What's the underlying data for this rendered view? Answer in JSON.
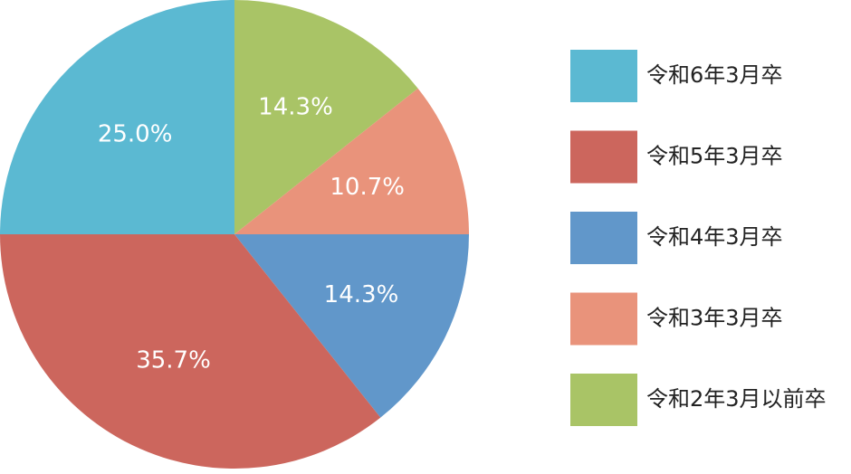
{
  "chart_data": {
    "type": "pie",
    "title": "",
    "start": "top",
    "direction": "clockwise",
    "slices": [
      {
        "label": "令和2年3月以前卒",
        "value": 14.3,
        "value_label": "14.3%",
        "color": "#a9c466"
      },
      {
        "label": "令和3年3月卒",
        "value": 10.7,
        "value_label": "10.7%",
        "color": "#e9937b"
      },
      {
        "label": "令和4年3月卒",
        "value": 14.3,
        "value_label": "14.3%",
        "color": "#6197ca"
      },
      {
        "label": "令和5年3月卒",
        "value": 35.7,
        "value_label": "35.7%",
        "color": "#cc665d"
      },
      {
        "label": "令和6年3月卒",
        "value": 25.0,
        "value_label": "25.0%",
        "color": "#5bb9d2"
      }
    ],
    "legend": {
      "placement": "right",
      "order": [
        "令和6年3月卒",
        "令和5年3月卒",
        "令和4年3月卒",
        "令和3年3月卒",
        "令和2年3月以前卒"
      ]
    }
  }
}
